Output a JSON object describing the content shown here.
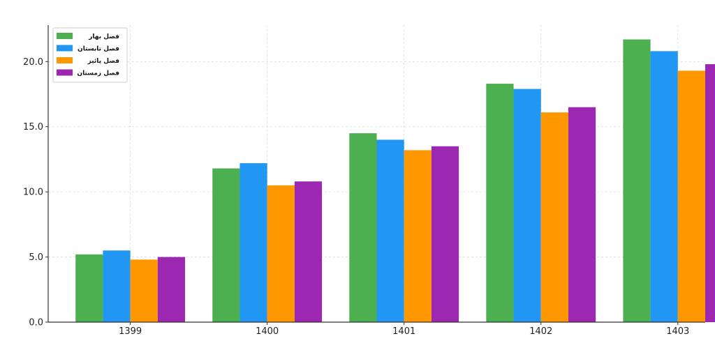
{
  "chart_data": {
    "type": "bar",
    "title": "",
    "xlabel": "",
    "ylabel": "",
    "categories": [
      "1399",
      "1400",
      "1401",
      "1402",
      "1403"
    ],
    "series": [
      {
        "name": "فصل بهار",
        "color": "#4caf50",
        "values": [
          5.2,
          11.8,
          14.5,
          18.3,
          21.7
        ]
      },
      {
        "name": "فصل تابستان",
        "color": "#2196f3",
        "values": [
          5.5,
          12.2,
          14.0,
          17.9,
          20.8
        ]
      },
      {
        "name": "فصل پائیز",
        "color": "#ff9800",
        "values": [
          4.8,
          10.5,
          13.2,
          16.1,
          19.3
        ]
      },
      {
        "name": "فصل زمستان",
        "color": "#9c27b0",
        "values": [
          5.0,
          10.8,
          13.5,
          16.5,
          19.8
        ]
      }
    ],
    "ylim": [
      0,
      22.8
    ],
    "yticks": [
      "0.0",
      "5.0",
      "10.0",
      "15.0",
      "20.0"
    ],
    "grid": true,
    "legend_position": "top-left"
  }
}
